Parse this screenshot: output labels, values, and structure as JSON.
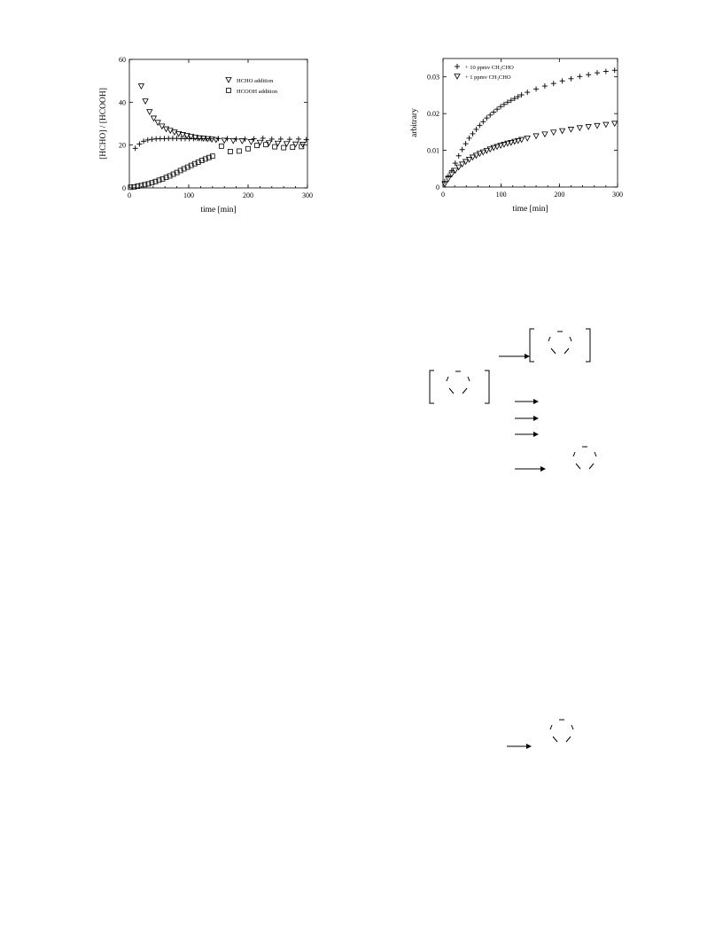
{
  "chart_data": [
    {
      "type": "scatter",
      "title": "",
      "xlabel": "time [min]",
      "ylabel": "[HCHO] / [HCOOH]",
      "xlim": [
        0,
        300
      ],
      "ylim": [
        0,
        60
      ],
      "x_ticks": [
        "0",
        "100",
        "200",
        "300"
      ],
      "y_ticks": [
        "0",
        "20",
        "40",
        "60"
      ],
      "grid": false,
      "legend_position": "top-right",
      "series": [
        {
          "name": "HCHO addition",
          "marker": "triangle-down",
          "x": [
            20,
            27,
            34,
            41,
            48,
            55,
            62,
            69,
            76,
            83,
            90,
            97,
            104,
            111,
            118,
            125,
            132,
            139,
            146,
            160,
            175,
            190,
            205,
            220,
            235,
            250,
            265,
            280,
            292
          ],
          "y": [
            47.5,
            40.5,
            35.5,
            32.5,
            30.5,
            28.8,
            27.5,
            26.8,
            26,
            25.3,
            24.8,
            24.4,
            24,
            23.6,
            23.3,
            23.1,
            22.9,
            22.7,
            22.5,
            22.2,
            22,
            21.9,
            21.5,
            21.2,
            21,
            20.8,
            20.6,
            20.4,
            20.3
          ]
        },
        {
          "name": "HCOOH addition",
          "marker": "square",
          "x": [
            2,
            8,
            14,
            20,
            26,
            32,
            38,
            44,
            50,
            56,
            62,
            68,
            74,
            80,
            86,
            92,
            98,
            104,
            110,
            116,
            122,
            128,
            134,
            140,
            155,
            170,
            185,
            200,
            215,
            230,
            245,
            260,
            275,
            290
          ],
          "y": [
            0.3,
            0.5,
            0.8,
            1.1,
            1.5,
            1.9,
            2.4,
            3.0,
            3.6,
            4.2,
            4.9,
            5.6,
            6.4,
            7.2,
            8.1,
            8.9,
            9.7,
            10.5,
            11.3,
            12.0,
            12.8,
            13.5,
            14.2,
            14.8,
            19.5,
            17.0,
            17.2,
            18.3,
            19.8,
            20.2,
            19.2,
            18.8,
            19.0,
            19.3
          ]
        },
        {
          "name": "",
          "marker": "plus",
          "x": [
            10,
            17,
            24,
            31,
            38,
            45,
            52,
            59,
            66,
            73,
            80,
            87,
            94,
            101,
            108,
            115,
            122,
            129,
            136,
            150,
            165,
            180,
            195,
            210,
            225,
            240,
            255,
            270,
            285,
            298
          ],
          "y": [
            18.5,
            20.5,
            21.8,
            22.4,
            22.7,
            22.9,
            23.0,
            23.0,
            23.1,
            23.1,
            23.1,
            23.0,
            23.0,
            23.0,
            23.0,
            23.0,
            23.0,
            23.0,
            23.0,
            23.0,
            23.0,
            22.8,
            22.8,
            22.9,
            23.2,
            22.8,
            22.8,
            22.7,
            22.8,
            22.5
          ]
        }
      ]
    },
    {
      "type": "scatter",
      "title": "",
      "xlabel": "time [min]",
      "ylabel": "arbitrary",
      "xlim": [
        0,
        300
      ],
      "ylim": [
        0,
        0.035
      ],
      "x_ticks": [
        "0",
        "100",
        "200",
        "300"
      ],
      "y_ticks": [
        "0",
        "0.01",
        "0.02",
        "0.03"
      ],
      "grid": false,
      "legend_position": "top-left",
      "series": [
        {
          "name": "+ 10 ppmv CH₃CHO",
          "marker": "plus",
          "x": [
            3,
            9,
            15,
            21,
            27,
            33,
            39,
            45,
            51,
            57,
            63,
            69,
            75,
            81,
            87,
            93,
            99,
            105,
            111,
            117,
            123,
            129,
            135,
            145,
            160,
            175,
            190,
            205,
            220,
            235,
            250,
            265,
            280,
            295
          ],
          "y": [
            0.0015,
            0.003,
            0.0045,
            0.0065,
            0.0085,
            0.0102,
            0.0118,
            0.0133,
            0.0145,
            0.0157,
            0.0168,
            0.0178,
            0.0188,
            0.0196,
            0.0204,
            0.0212,
            0.0219,
            0.0225,
            0.0231,
            0.0236,
            0.0241,
            0.0246,
            0.0251,
            0.0258,
            0.0267,
            0.0275,
            0.0282,
            0.0289,
            0.0295,
            0.0301,
            0.0306,
            0.0311,
            0.0315,
            0.0318
          ]
        },
        {
          "name": "+ 1 ppmv CH₃CHO",
          "marker": "triangle-down",
          "x": [
            3,
            9,
            15,
            21,
            27,
            33,
            39,
            45,
            51,
            57,
            63,
            69,
            75,
            81,
            87,
            93,
            99,
            105,
            111,
            117,
            123,
            129,
            135,
            145,
            160,
            175,
            190,
            205,
            220,
            235,
            250,
            265,
            280,
            295
          ],
          "y": [
            0.0008,
            0.0022,
            0.0035,
            0.0045,
            0.0054,
            0.0062,
            0.0069,
            0.0075,
            0.0081,
            0.0086,
            0.0091,
            0.0095,
            0.0099,
            0.0103,
            0.0107,
            0.011,
            0.0113,
            0.0116,
            0.0119,
            0.0121,
            0.0124,
            0.0126,
            0.0129,
            0.0133,
            0.0139,
            0.0144,
            0.0149,
            0.0153,
            0.0157,
            0.0161,
            0.0164,
            0.0167,
            0.017,
            0.0173
          ]
        }
      ]
    }
  ]
}
